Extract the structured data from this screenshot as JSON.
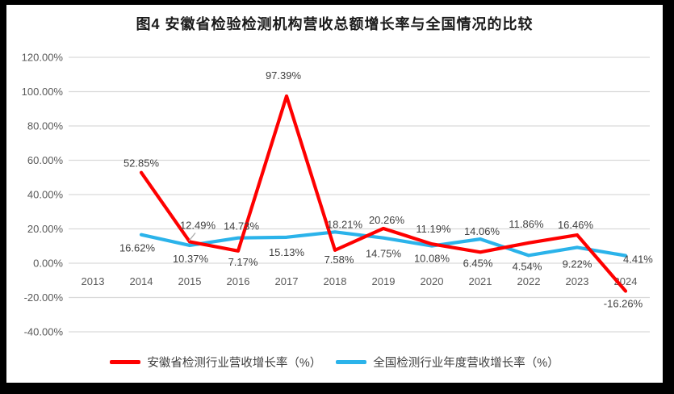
{
  "chart_data": {
    "type": "line",
    "title": "图4  安徽省检验检测机构营收总额增长率与全国情况的比较",
    "categories": [
      "2013",
      "2014",
      "2015",
      "2016",
      "2017",
      "2018",
      "2019",
      "2020",
      "2021",
      "2022",
      "2023",
      "2024"
    ],
    "xlabel": "",
    "ylabel": "",
    "y_axis": {
      "min": -40,
      "max": 120,
      "step": 20,
      "tick_format": "percent-2dp"
    },
    "y_tick_labels": [
      "120.00%",
      "100.00%",
      "80.00%",
      "60.00%",
      "40.00%",
      "20.00%",
      "0.00%",
      "-20.00%",
      "-40.00%"
    ],
    "grid": true,
    "legend_position": "bottom",
    "colors": {
      "grid": "#d9d9d9",
      "axis_text": "#595959",
      "data_label_text": "#404040",
      "leader_line": "#a6a6a6"
    },
    "series": [
      {
        "name": "安徽省检测行业营收增长率（%）",
        "color": "#fe0000",
        "values": [
          null,
          52.85,
          12.49,
          7.17,
          97.39,
          7.58,
          20.26,
          11.19,
          6.45,
          11.86,
          16.46,
          -16.26
        ],
        "data_labels": [
          null,
          "52.85%",
          "12.49%",
          "7.17%",
          "97.39%",
          "7.58%",
          "20.26%",
          "11.19%",
          "6.45%",
          "11.86%",
          "16.46%",
          "-16.26%"
        ],
        "label_placement": [
          null,
          {
            "dx": 0,
            "dy": -7
          },
          {
            "dx": 10,
            "dy": -16,
            "leader": true
          },
          {
            "dx": 6,
            "dy": 18
          },
          {
            "dx": -4,
            "dy": -21
          },
          {
            "dx": 5,
            "dy": 16
          },
          {
            "dx": 4,
            "dy": -6
          },
          {
            "dx": 2,
            "dy": -14
          },
          {
            "dx": -3,
            "dy": 18
          },
          {
            "dx": -3,
            "dy": -19
          },
          {
            "dx": -2,
            "dy": -8
          },
          {
            "dx": -3,
            "dy": 20
          }
        ]
      },
      {
        "name": "全国检测行业年度营收增长率（%）",
        "color": "#2bb3ea",
        "values": [
          null,
          16.62,
          10.37,
          14.73,
          15.13,
          18.21,
          14.75,
          10.08,
          14.06,
          4.54,
          9.22,
          4.41
        ],
        "data_labels": [
          null,
          "16.62%",
          "10.37%",
          "14.73%",
          "15.13%",
          "18.21%",
          "14.75%",
          "10.08%",
          "14.06%",
          "4.54%",
          "9.22%",
          "4.41%"
        ],
        "label_placement": [
          null,
          {
            "dx": -5,
            "dy": 21
          },
          {
            "dx": 1,
            "dy": 21
          },
          {
            "dx": 4,
            "dy": -10
          },
          {
            "dx": 0,
            "dy": 23
          },
          {
            "dx": 12,
            "dy": -5
          },
          {
            "dx": 0,
            "dy": 24
          },
          {
            "dx": 0,
            "dy": 20
          },
          {
            "dx": 2,
            "dy": -5
          },
          {
            "dx": -2,
            "dy": 18
          },
          {
            "dx": 0,
            "dy": 25
          },
          {
            "dx": -3,
            "dy": 9,
            "anchor": "start"
          }
        ]
      }
    ]
  }
}
